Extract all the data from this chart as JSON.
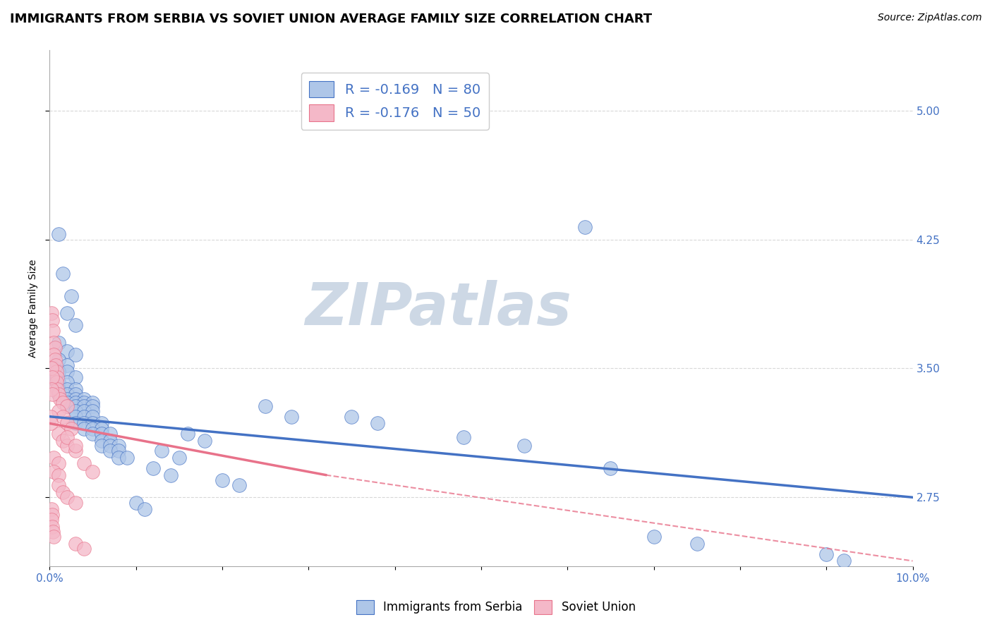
{
  "title": "IMMIGRANTS FROM SERBIA VS SOVIET UNION AVERAGE FAMILY SIZE CORRELATION CHART",
  "source": "Source: ZipAtlas.com",
  "ylabel": "Average Family Size",
  "watermark": "ZIPatlas",
  "legend_serbia": "R = -0.169   N = 80",
  "legend_soviet": "R = -0.176   N = 50",
  "serbia_color": "#aec6e8",
  "soviet_color": "#f4b8c8",
  "serbia_line_color": "#4472c4",
  "soviet_line_color": "#e8728a",
  "right_ytick_color": "#4472c4",
  "yticks_right": [
    2.75,
    3.5,
    4.25,
    5.0
  ],
  "serbia_scatter": [
    [
      0.001,
      4.28
    ],
    [
      0.0015,
      4.05
    ],
    [
      0.0025,
      3.92
    ],
    [
      0.002,
      3.82
    ],
    [
      0.003,
      3.75
    ],
    [
      0.001,
      3.65
    ],
    [
      0.002,
      3.6
    ],
    [
      0.003,
      3.58
    ],
    [
      0.001,
      3.55
    ],
    [
      0.002,
      3.52
    ],
    [
      0.0005,
      3.5
    ],
    [
      0.001,
      3.48
    ],
    [
      0.002,
      3.48
    ],
    [
      0.003,
      3.45
    ],
    [
      0.0005,
      3.44
    ],
    [
      0.001,
      3.42
    ],
    [
      0.002,
      3.42
    ],
    [
      0.001,
      3.38
    ],
    [
      0.002,
      3.38
    ],
    [
      0.003,
      3.38
    ],
    [
      0.001,
      3.35
    ],
    [
      0.002,
      3.35
    ],
    [
      0.003,
      3.35
    ],
    [
      0.002,
      3.32
    ],
    [
      0.003,
      3.32
    ],
    [
      0.004,
      3.32
    ],
    [
      0.002,
      3.3
    ],
    [
      0.003,
      3.3
    ],
    [
      0.004,
      3.3
    ],
    [
      0.005,
      3.3
    ],
    [
      0.002,
      3.28
    ],
    [
      0.003,
      3.28
    ],
    [
      0.004,
      3.28
    ],
    [
      0.005,
      3.28
    ],
    [
      0.003,
      3.25
    ],
    [
      0.004,
      3.25
    ],
    [
      0.005,
      3.25
    ],
    [
      0.003,
      3.22
    ],
    [
      0.004,
      3.22
    ],
    [
      0.005,
      3.22
    ],
    [
      0.003,
      3.18
    ],
    [
      0.004,
      3.18
    ],
    [
      0.005,
      3.18
    ],
    [
      0.006,
      3.18
    ],
    [
      0.004,
      3.15
    ],
    [
      0.005,
      3.15
    ],
    [
      0.006,
      3.15
    ],
    [
      0.005,
      3.12
    ],
    [
      0.006,
      3.12
    ],
    [
      0.007,
      3.12
    ],
    [
      0.006,
      3.08
    ],
    [
      0.007,
      3.08
    ],
    [
      0.006,
      3.05
    ],
    [
      0.007,
      3.05
    ],
    [
      0.008,
      3.05
    ],
    [
      0.007,
      3.02
    ],
    [
      0.008,
      3.02
    ],
    [
      0.008,
      2.98
    ],
    [
      0.009,
      2.98
    ],
    [
      0.035,
      3.22
    ],
    [
      0.038,
      3.18
    ],
    [
      0.048,
      3.1
    ],
    [
      0.055,
      3.05
    ],
    [
      0.062,
      4.32
    ],
    [
      0.065,
      2.92
    ],
    [
      0.025,
      3.28
    ],
    [
      0.028,
      3.22
    ],
    [
      0.016,
      3.12
    ],
    [
      0.018,
      3.08
    ],
    [
      0.013,
      3.02
    ],
    [
      0.015,
      2.98
    ],
    [
      0.012,
      2.92
    ],
    [
      0.014,
      2.88
    ],
    [
      0.02,
      2.85
    ],
    [
      0.022,
      2.82
    ],
    [
      0.01,
      2.72
    ],
    [
      0.011,
      2.68
    ],
    [
      0.09,
      2.42
    ],
    [
      0.092,
      2.38
    ],
    [
      0.07,
      2.52
    ],
    [
      0.075,
      2.48
    ]
  ],
  "soviet_scatter": [
    [
      0.0002,
      3.82
    ],
    [
      0.0003,
      3.78
    ],
    [
      0.0004,
      3.72
    ],
    [
      0.0005,
      3.65
    ],
    [
      0.0006,
      3.62
    ],
    [
      0.0005,
      3.58
    ],
    [
      0.0006,
      3.55
    ],
    [
      0.0007,
      3.52
    ],
    [
      0.0008,
      3.48
    ],
    [
      0.0009,
      3.45
    ],
    [
      0.0008,
      3.42
    ],
    [
      0.0009,
      3.38
    ],
    [
      0.001,
      3.35
    ],
    [
      0.0012,
      3.32
    ],
    [
      0.0015,
      3.3
    ],
    [
      0.002,
      3.28
    ],
    [
      0.001,
      3.25
    ],
    [
      0.0015,
      3.22
    ],
    [
      0.002,
      3.18
    ],
    [
      0.0025,
      3.15
    ],
    [
      0.001,
      3.12
    ],
    [
      0.0015,
      3.08
    ],
    [
      0.002,
      3.05
    ],
    [
      0.003,
      3.02
    ],
    [
      0.0005,
      2.98
    ],
    [
      0.001,
      2.95
    ],
    [
      0.0005,
      2.9
    ],
    [
      0.001,
      2.88
    ],
    [
      0.001,
      2.82
    ],
    [
      0.0015,
      2.78
    ],
    [
      0.002,
      2.75
    ],
    [
      0.003,
      2.72
    ],
    [
      0.0002,
      2.68
    ],
    [
      0.0003,
      2.65
    ],
    [
      0.0002,
      2.62
    ],
    [
      0.0003,
      2.58
    ],
    [
      0.0004,
      2.55
    ],
    [
      0.0005,
      2.52
    ],
    [
      0.003,
      2.48
    ],
    [
      0.004,
      2.45
    ],
    [
      0.0002,
      3.5
    ],
    [
      0.0003,
      3.45
    ],
    [
      0.0002,
      3.38
    ],
    [
      0.0003,
      3.35
    ],
    [
      0.002,
      3.1
    ],
    [
      0.003,
      3.05
    ],
    [
      0.004,
      2.95
    ],
    [
      0.005,
      2.9
    ],
    [
      0.0001,
      3.22
    ],
    [
      0.0001,
      3.18
    ]
  ],
  "serbia_line": {
    "x": [
      0.0,
      0.1
    ],
    "y": [
      3.22,
      2.75
    ]
  },
  "soviet_line_solid": {
    "x": [
      0.0,
      0.032
    ],
    "y": [
      3.18,
      2.88
    ]
  },
  "soviet_line_dashed": {
    "x": [
      0.032,
      0.1
    ],
    "y": [
      2.88,
      2.38
    ]
  },
  "xlim": [
    0.0,
    0.1
  ],
  "ylim": [
    2.35,
    5.35
  ],
  "background_color": "#ffffff",
  "grid_color": "#d8d8d8",
  "title_fontsize": 13,
  "source_fontsize": 10,
  "axis_label_fontsize": 10,
  "tick_fontsize": 11,
  "watermark_color": "#cdd8e5",
  "watermark_fontsize": 60
}
